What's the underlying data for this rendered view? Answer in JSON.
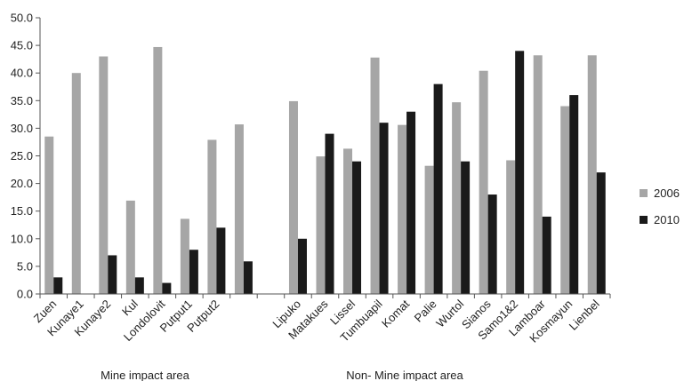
{
  "chart_data": {
    "type": "bar",
    "title": "",
    "xlabel": "",
    "ylabel": "",
    "ylim": [
      0,
      50
    ],
    "yticks": [
      0,
      5,
      10,
      15,
      20,
      25,
      30,
      35,
      40,
      45,
      50
    ],
    "ytick_labels": [
      "0.0",
      "5.0",
      "10.0",
      "15.0",
      "20.0",
      "25.0",
      "30.0",
      "35.0",
      "40.0",
      "45.0",
      "50.0"
    ],
    "grid": false,
    "legend_position": "right",
    "categories": [
      "Zuen",
      "Kunaye1",
      "Kunaye2",
      "Kul",
      "Londolovit",
      "Putput1",
      "Putput2",
      "",
      "",
      "Lipuko",
      "Matakues",
      "Lissel",
      "Tumbuapil",
      "Komat",
      "Palie",
      "Wurtol",
      "Sianos",
      "Samo1&2",
      "Lamboar",
      "Kosmayun",
      "Lienbel"
    ],
    "series": [
      {
        "name": "2006",
        "color": "#a6a6a6",
        "values": [
          28.5,
          40.0,
          43.0,
          16.9,
          44.7,
          13.6,
          27.9,
          30.7,
          null,
          34.9,
          24.9,
          26.3,
          42.8,
          30.6,
          23.2,
          34.7,
          40.4,
          24.2,
          43.2,
          34.0,
          43.2
        ]
      },
      {
        "name": "2010",
        "color": "#1a1a1a",
        "values": [
          3.0,
          0,
          7.0,
          3.0,
          2.0,
          8.0,
          12.0,
          5.9,
          null,
          10.0,
          29.0,
          24.0,
          31.0,
          33.0,
          38.0,
          24.0,
          18.0,
          44.0,
          14.0,
          36.0,
          22.0
        ]
      }
    ],
    "groups": [
      {
        "label": "Mine impact area"
      },
      {
        "label": "Non- Mine impact area"
      }
    ]
  }
}
